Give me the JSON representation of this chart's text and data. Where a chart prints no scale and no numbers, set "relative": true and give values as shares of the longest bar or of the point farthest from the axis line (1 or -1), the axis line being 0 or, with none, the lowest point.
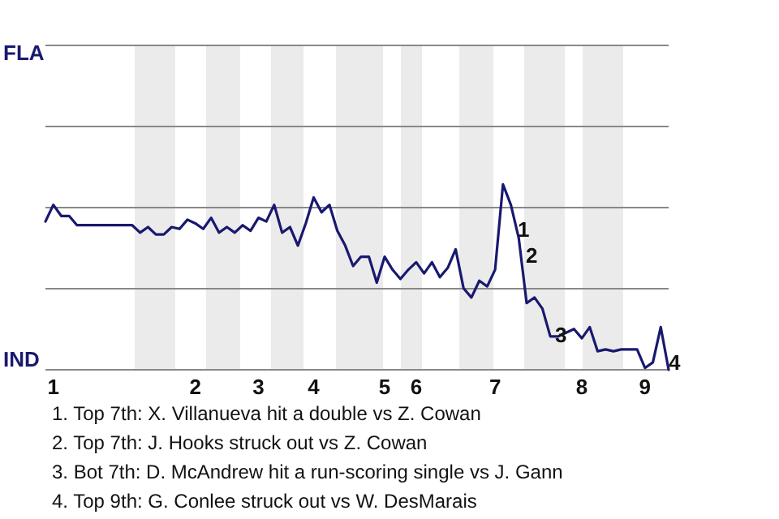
{
  "chart_data": {
    "type": "line",
    "relative": true,
    "categories": [
      null,
      "1",
      null,
      null,
      null,
      null,
      null,
      null,
      null,
      null,
      null,
      null,
      null,
      null,
      null,
      null,
      null,
      null,
      null,
      "2",
      null,
      null,
      null,
      null,
      null,
      null,
      null,
      "3",
      null,
      null,
      null,
      null,
      null,
      null,
      "4",
      null,
      null,
      null,
      null,
      null,
      null,
      null,
      null,
      "5",
      null,
      null,
      null,
      "6",
      null,
      null,
      null,
      null,
      null,
      null,
      null,
      null,
      null,
      "7",
      null,
      null,
      null,
      null,
      null,
      null,
      null,
      null,
      null,
      null,
      "8",
      null,
      null,
      null,
      null,
      null,
      null,
      null,
      "9",
      null,
      null,
      null
    ],
    "marker": "none",
    "line_style": "solid",
    "ref_lines": [
      {
        "axis": "y",
        "value": 0.4375,
        "color": "#888888"
      },
      {
        "axis": "y",
        "value": 0.875,
        "color": "#888888"
      },
      {
        "axis": "y",
        "value": 1.3125,
        "color": "#888888"
      },
      {
        "axis": "y",
        "value": 1.75,
        "color": "#888888"
      }
    ],
    "series": [
      {
        "color": "#191970",
        "values": [
          0.8,
          0.89,
          0.83,
          0.83,
          0.78,
          0.78,
          0.78,
          0.78,
          0.78,
          0.78,
          0.78,
          0.78,
          0.74,
          0.77,
          0.73,
          0.73,
          0.77,
          0.76,
          0.81,
          0.79,
          0.76,
          0.82,
          0.74,
          0.77,
          0.74,
          0.78,
          0.75,
          0.82,
          0.8,
          0.89,
          0.74,
          0.77,
          0.67,
          0.79,
          0.93,
          0.85,
          0.89,
          0.75,
          0.67,
          0.56,
          0.61,
          0.61,
          0.47,
          0.61,
          0.54,
          0.49,
          0.54,
          0.58,
          0.52,
          0.58,
          0.5,
          0.55,
          0.65,
          0.44,
          0.39,
          0.48,
          0.45,
          0.54,
          1,
          0.89,
          0.71,
          0.36,
          0.39,
          0.33,
          0.18,
          0.18,
          0.2,
          0.22,
          0.17,
          0.23,
          0.1,
          0.11,
          0.1,
          0.11,
          0.11,
          0.11,
          0.01,
          0.04,
          0.23,
          0
        ]
      }
    ],
    "annotations": [
      "FLA",
      "IND",
      "1",
      "2",
      "3",
      "4",
      "1. Top 7th: X. Villanueva hit a double vs Z. Cowan",
      "2. Top 7th: J. Hooks struck out vs Z. Cowan",
      "3. Bot 7th: D. McAndrew hit a run-scoring single vs J. Gann",
      "4. Top 9th: G. Conlee struck out vs W. DesMarais"
    ]
  }
}
